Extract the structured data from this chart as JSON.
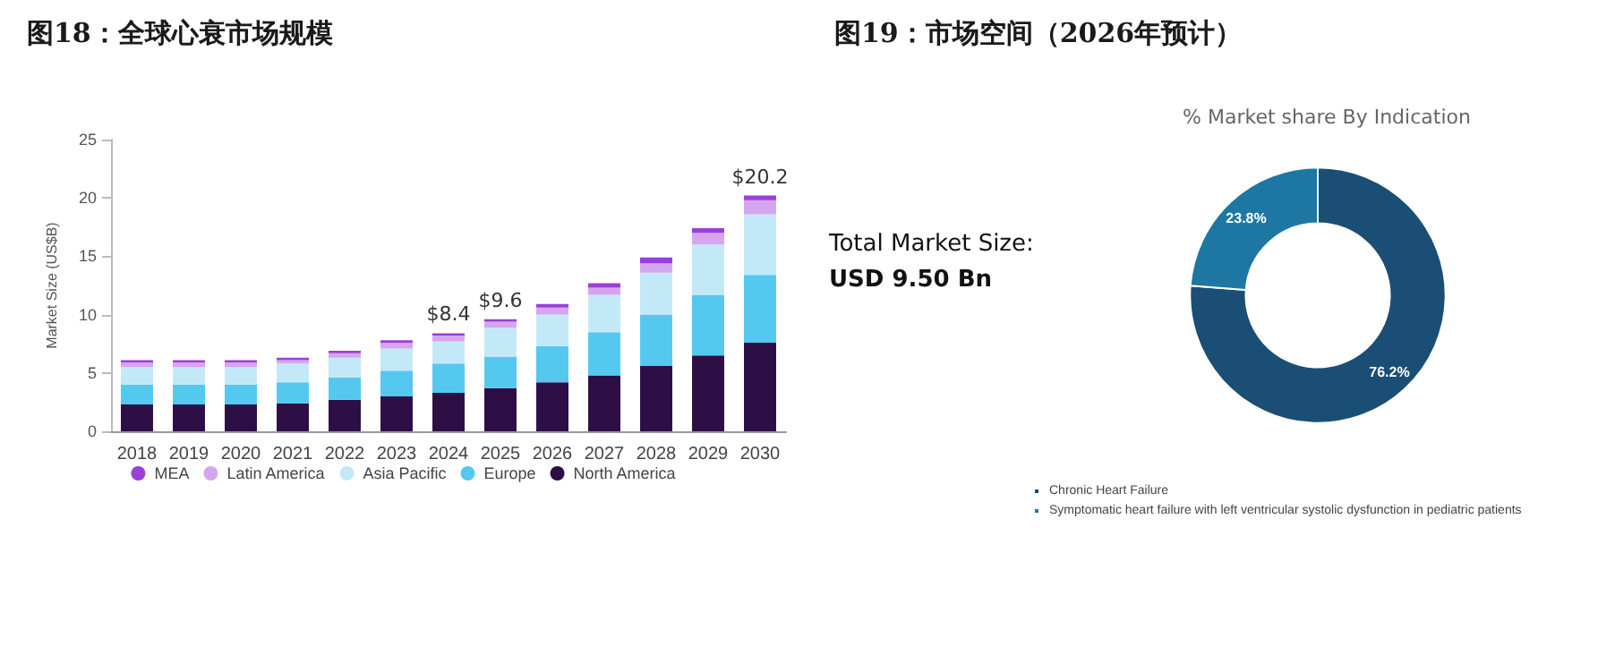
{
  "chart_data": [
    {
      "type": "bar",
      "title": "图18：全球心衰市场规模",
      "ylabel": "Market Size (US$B)",
      "categories": [
        "2018",
        "2019",
        "2020",
        "2021",
        "2022",
        "2023",
        "2024",
        "2025",
        "2026",
        "2027",
        "2028",
        "2029",
        "2030"
      ],
      "stacked": true,
      "ylim": [
        0,
        25
      ],
      "yticks": [
        0,
        5,
        10,
        15,
        20,
        25
      ],
      "grid": false,
      "legend": "bottom",
      "series": [
        {
          "name": "North America",
          "color": "#2d0f45",
          "values": [
            2.3,
            2.3,
            2.3,
            2.4,
            2.7,
            3.0,
            3.3,
            3.7,
            4.2,
            4.8,
            5.6,
            6.5,
            7.6
          ]
        },
        {
          "name": "Europe",
          "color": "#55c8f0",
          "values": [
            1.7,
            1.7,
            1.7,
            1.8,
            1.9,
            2.2,
            2.5,
            2.7,
            3.1,
            3.7,
            4.4,
            5.2,
            5.8
          ]
        },
        {
          "name": "Asia Pacific",
          "color": "#c3e9f8",
          "values": [
            1.5,
            1.5,
            1.5,
            1.6,
            1.7,
            1.9,
            1.9,
            2.5,
            2.7,
            3.2,
            3.6,
            4.3,
            5.2
          ]
        },
        {
          "name": "Latin America",
          "color": "#d5a6ee",
          "values": [
            0.4,
            0.4,
            0.4,
            0.3,
            0.4,
            0.5,
            0.5,
            0.5,
            0.6,
            0.6,
            0.8,
            1.0,
            1.2
          ]
        },
        {
          "name": "MEA",
          "color": "#9b3fd8",
          "values": [
            0.2,
            0.2,
            0.2,
            0.2,
            0.2,
            0.2,
            0.2,
            0.2,
            0.3,
            0.4,
            0.5,
            0.4,
            0.4
          ]
        }
      ],
      "totals": [
        null,
        null,
        null,
        null,
        null,
        null,
        "$8.4",
        "$9.6",
        null,
        null,
        null,
        null,
        "$20.2"
      ]
    },
    {
      "type": "donut",
      "title": "图19：市场空间（2026年预计）",
      "subtitle": "% Market share By Indication",
      "categories": [
        "Chronic Heart Failure",
        "Symptomatic heart failure with left ventricular systolic dysfunction in pediatric patients"
      ],
      "values": [
        76.2,
        23.8
      ],
      "colors": [
        "#1a4e75",
        "#1e77a3"
      ],
      "value_labels": [
        "76.2%",
        "23.8%"
      ],
      "legend": "bottom",
      "annotations": [
        "Total Market Size:",
        "USD 9.50 Bn"
      ]
    }
  ]
}
